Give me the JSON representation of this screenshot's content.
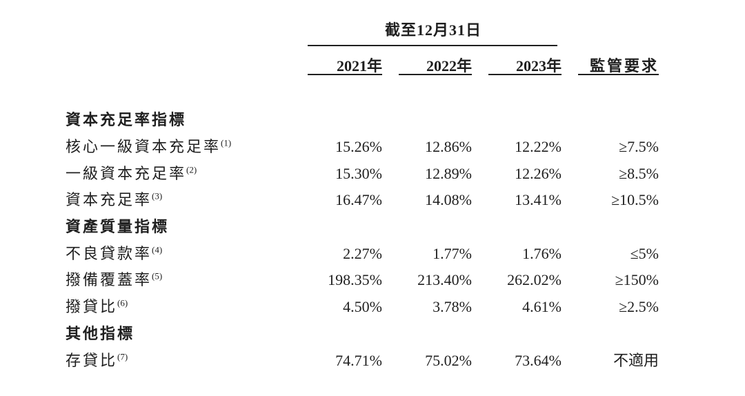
{
  "colors": {
    "text": "#1f1f1f",
    "rule": "#1f1f1f",
    "background": "#ffffff"
  },
  "table": {
    "header": {
      "spanner": "截至12月31日",
      "col_2021": "2021年",
      "col_2022": "2022年",
      "col_2023": "2023年",
      "col_reg": "監管要求"
    },
    "rows": [
      {
        "type": "section",
        "label": "資本充足率指標",
        "sup": "",
        "v2021": "",
        "v2022": "",
        "v2023": "",
        "reg": ""
      },
      {
        "type": "data",
        "label": "核心一級資本充足率",
        "sup": "(1)",
        "v2021": "15.26%",
        "v2022": "12.86%",
        "v2023": "12.22%",
        "reg": "≥7.5%"
      },
      {
        "type": "data",
        "label": "一級資本充足率",
        "sup": "(2)",
        "v2021": "15.30%",
        "v2022": "12.89%",
        "v2023": "12.26%",
        "reg": "≥8.5%"
      },
      {
        "type": "data",
        "label": "資本充足率",
        "sup": "(3)",
        "v2021": "16.47%",
        "v2022": "14.08%",
        "v2023": "13.41%",
        "reg": "≥10.5%"
      },
      {
        "type": "section",
        "label": "資產質量指標",
        "sup": "",
        "v2021": "",
        "v2022": "",
        "v2023": "",
        "reg": ""
      },
      {
        "type": "data",
        "label": "不良貸款率",
        "sup": "(4)",
        "v2021": "2.27%",
        "v2022": "1.77%",
        "v2023": "1.76%",
        "reg": "≤5%"
      },
      {
        "type": "data",
        "label": "撥備覆蓋率",
        "sup": "(5)",
        "v2021": "198.35%",
        "v2022": "213.40%",
        "v2023": "262.02%",
        "reg": "≥150%"
      },
      {
        "type": "data",
        "label": "撥貸比",
        "sup": "(6)",
        "v2021": "4.50%",
        "v2022": "3.78%",
        "v2023": "4.61%",
        "reg": "≥2.5%"
      },
      {
        "type": "section",
        "label": "其他指標",
        "sup": "",
        "v2021": "",
        "v2022": "",
        "v2023": "",
        "reg": ""
      },
      {
        "type": "data",
        "label": "存貸比",
        "sup": "(7)",
        "v2021": "74.71%",
        "v2022": "75.02%",
        "v2023": "73.64%",
        "reg": "不適用"
      }
    ]
  }
}
